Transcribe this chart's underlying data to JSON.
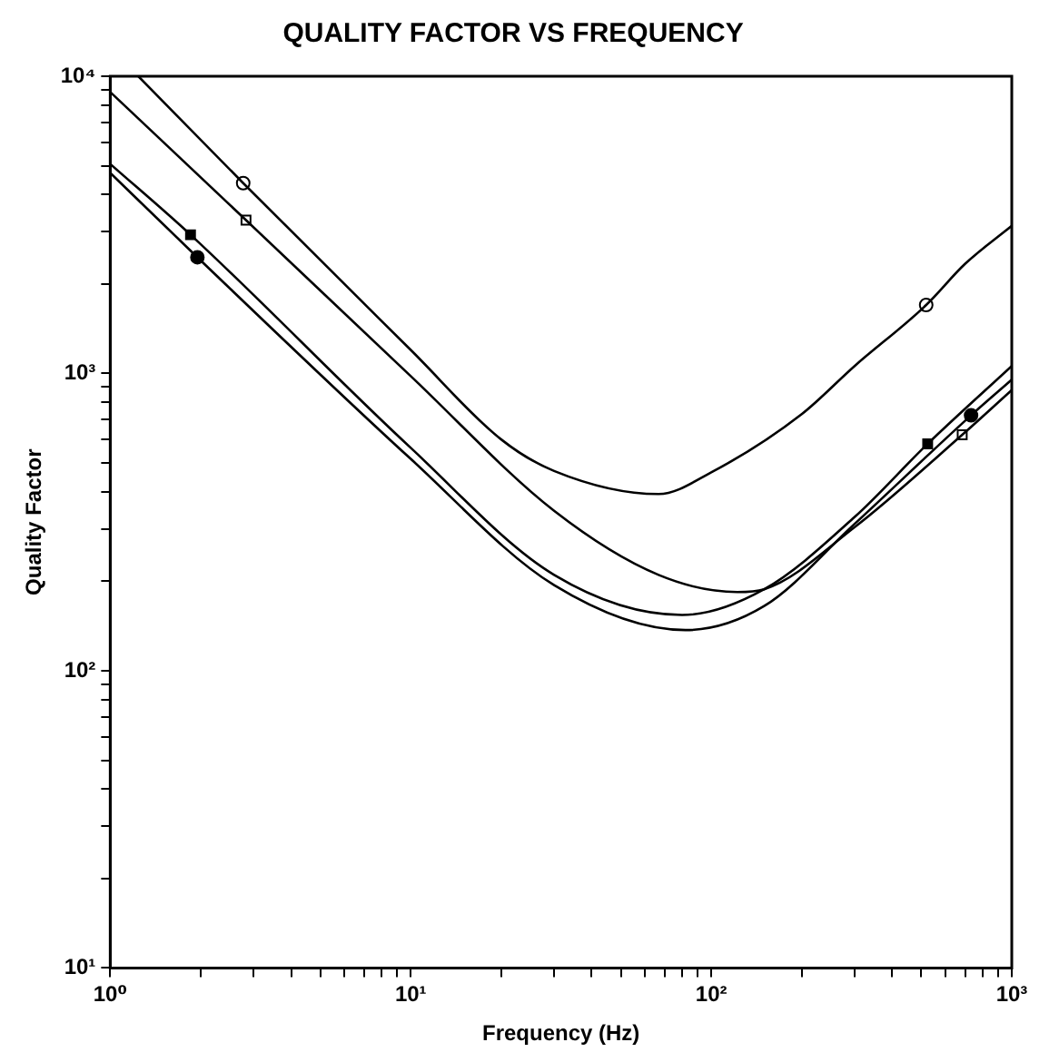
{
  "chart_data": {
    "type": "line",
    "title": "QUALITY FACTOR VS FREQUENCY",
    "xlabel": "Frequency (Hz)",
    "ylabel": "Quality Factor",
    "log": "xy",
    "grid": false,
    "legend": false,
    "line_style": "solid",
    "xlim": [
      1,
      1000
    ],
    "ylim": [
      10,
      10000
    ],
    "xticks": [
      {
        "value": 1,
        "label": "10⁰"
      },
      {
        "value": 2,
        "label": null
      },
      {
        "value": 3,
        "label": null
      },
      {
        "value": 4,
        "label": null
      },
      {
        "value": 5,
        "label": null
      },
      {
        "value": 6,
        "label": null
      },
      {
        "value": 7,
        "label": null
      },
      {
        "value": 8,
        "label": null
      },
      {
        "value": 9,
        "label": null
      },
      {
        "value": 10,
        "label": "10¹"
      },
      {
        "value": 20,
        "label": null
      },
      {
        "value": 30,
        "label": null
      },
      {
        "value": 40,
        "label": null
      },
      {
        "value": 50,
        "label": null
      },
      {
        "value": 60,
        "label": null
      },
      {
        "value": 70,
        "label": null
      },
      {
        "value": 80,
        "label": null
      },
      {
        "value": 90,
        "label": null
      },
      {
        "value": 100,
        "label": "10²"
      },
      {
        "value": 200,
        "label": null
      },
      {
        "value": 300,
        "label": null
      },
      {
        "value": 400,
        "label": null
      },
      {
        "value": 500,
        "label": null
      },
      {
        "value": 600,
        "label": null
      },
      {
        "value": 700,
        "label": null
      },
      {
        "value": 800,
        "label": null
      },
      {
        "value": 900,
        "label": null
      },
      {
        "value": 1000,
        "label": "10³"
      }
    ],
    "yticks": [
      {
        "value": 10,
        "label": "10¹"
      },
      {
        "value": 20,
        "label": null
      },
      {
        "value": 30,
        "label": null
      },
      {
        "value": 40,
        "label": null
      },
      {
        "value": 50,
        "label": null
      },
      {
        "value": 60,
        "label": null
      },
      {
        "value": 70,
        "label": null
      },
      {
        "value": 80,
        "label": null
      },
      {
        "value": 90,
        "label": null
      },
      {
        "value": 100,
        "label": "10²"
      },
      {
        "value": 200,
        "label": null
      },
      {
        "value": 300,
        "label": null
      },
      {
        "value": 400,
        "label": null
      },
      {
        "value": 500,
        "label": null
      },
      {
        "value": 600,
        "label": null
      },
      {
        "value": 700,
        "label": null
      },
      {
        "value": 800,
        "label": null
      },
      {
        "value": 900,
        "label": null
      },
      {
        "value": 1000,
        "label": "10³"
      },
      {
        "value": 2000,
        "label": null
      },
      {
        "value": 3000,
        "label": null
      },
      {
        "value": 4000,
        "label": null
      },
      {
        "value": 5000,
        "label": null
      },
      {
        "value": 6000,
        "label": null
      },
      {
        "value": 7000,
        "label": null
      },
      {
        "value": 8000,
        "label": null
      },
      {
        "value": 9000,
        "label": null
      },
      {
        "value": 10000,
        "label": "10⁴"
      }
    ],
    "series": [
      {
        "color": "#000000",
        "marker": "none",
        "x": [
          1.24,
          2.77,
          10,
          20,
          30,
          66.8,
          100,
          200,
          300,
          519,
          700,
          1000
        ],
        "values": [
          10000,
          4370,
          1200,
          600,
          470,
          393,
          465,
          730,
          1060,
          1700,
          2340,
          3140
        ]
      },
      {
        "color": "#000000",
        "marker": "none",
        "x": [
          1,
          2.83,
          10,
          30,
          66.8,
          122,
          150,
          300,
          684,
          1000
        ],
        "values": [
          8850,
          3280,
          980,
          345,
          210,
          184,
          188,
          304,
          622,
          880
        ]
      },
      {
        "color": "#000000",
        "marker": "none",
        "x": [
          1,
          1.85,
          10,
          30,
          80,
          150,
          300,
          525,
          1000
        ],
        "values": [
          5070,
          2930,
          562,
          210,
          154,
          188,
          329,
          580,
          1060
        ]
      },
      {
        "color": "#000000",
        "marker": "none",
        "x": [
          1,
          1.95,
          10,
          30,
          82,
          150,
          300,
          732,
          1000
        ],
        "values": [
          4730,
          2460,
          516,
          194,
          137,
          165,
          312,
          723,
          953
        ]
      },
      {
        "type": "scatter",
        "color": "#ffffff",
        "marker": "circle",
        "x": [
          2.77,
          519
        ],
        "values": [
          4370,
          1700
        ]
      },
      {
        "type": "scatter",
        "color": "#ffffff",
        "marker": "square",
        "x": [
          2.83,
          684
        ],
        "values": [
          3280,
          622
        ]
      },
      {
        "type": "scatter",
        "color": "#000000",
        "marker": "square",
        "x": [
          1.85,
          525
        ],
        "values": [
          2930,
          580
        ]
      },
      {
        "type": "scatter",
        "color": "#000000",
        "marker": "circle",
        "x": [
          1.95,
          732
        ],
        "values": [
          2460,
          723
        ]
      }
    ]
  }
}
